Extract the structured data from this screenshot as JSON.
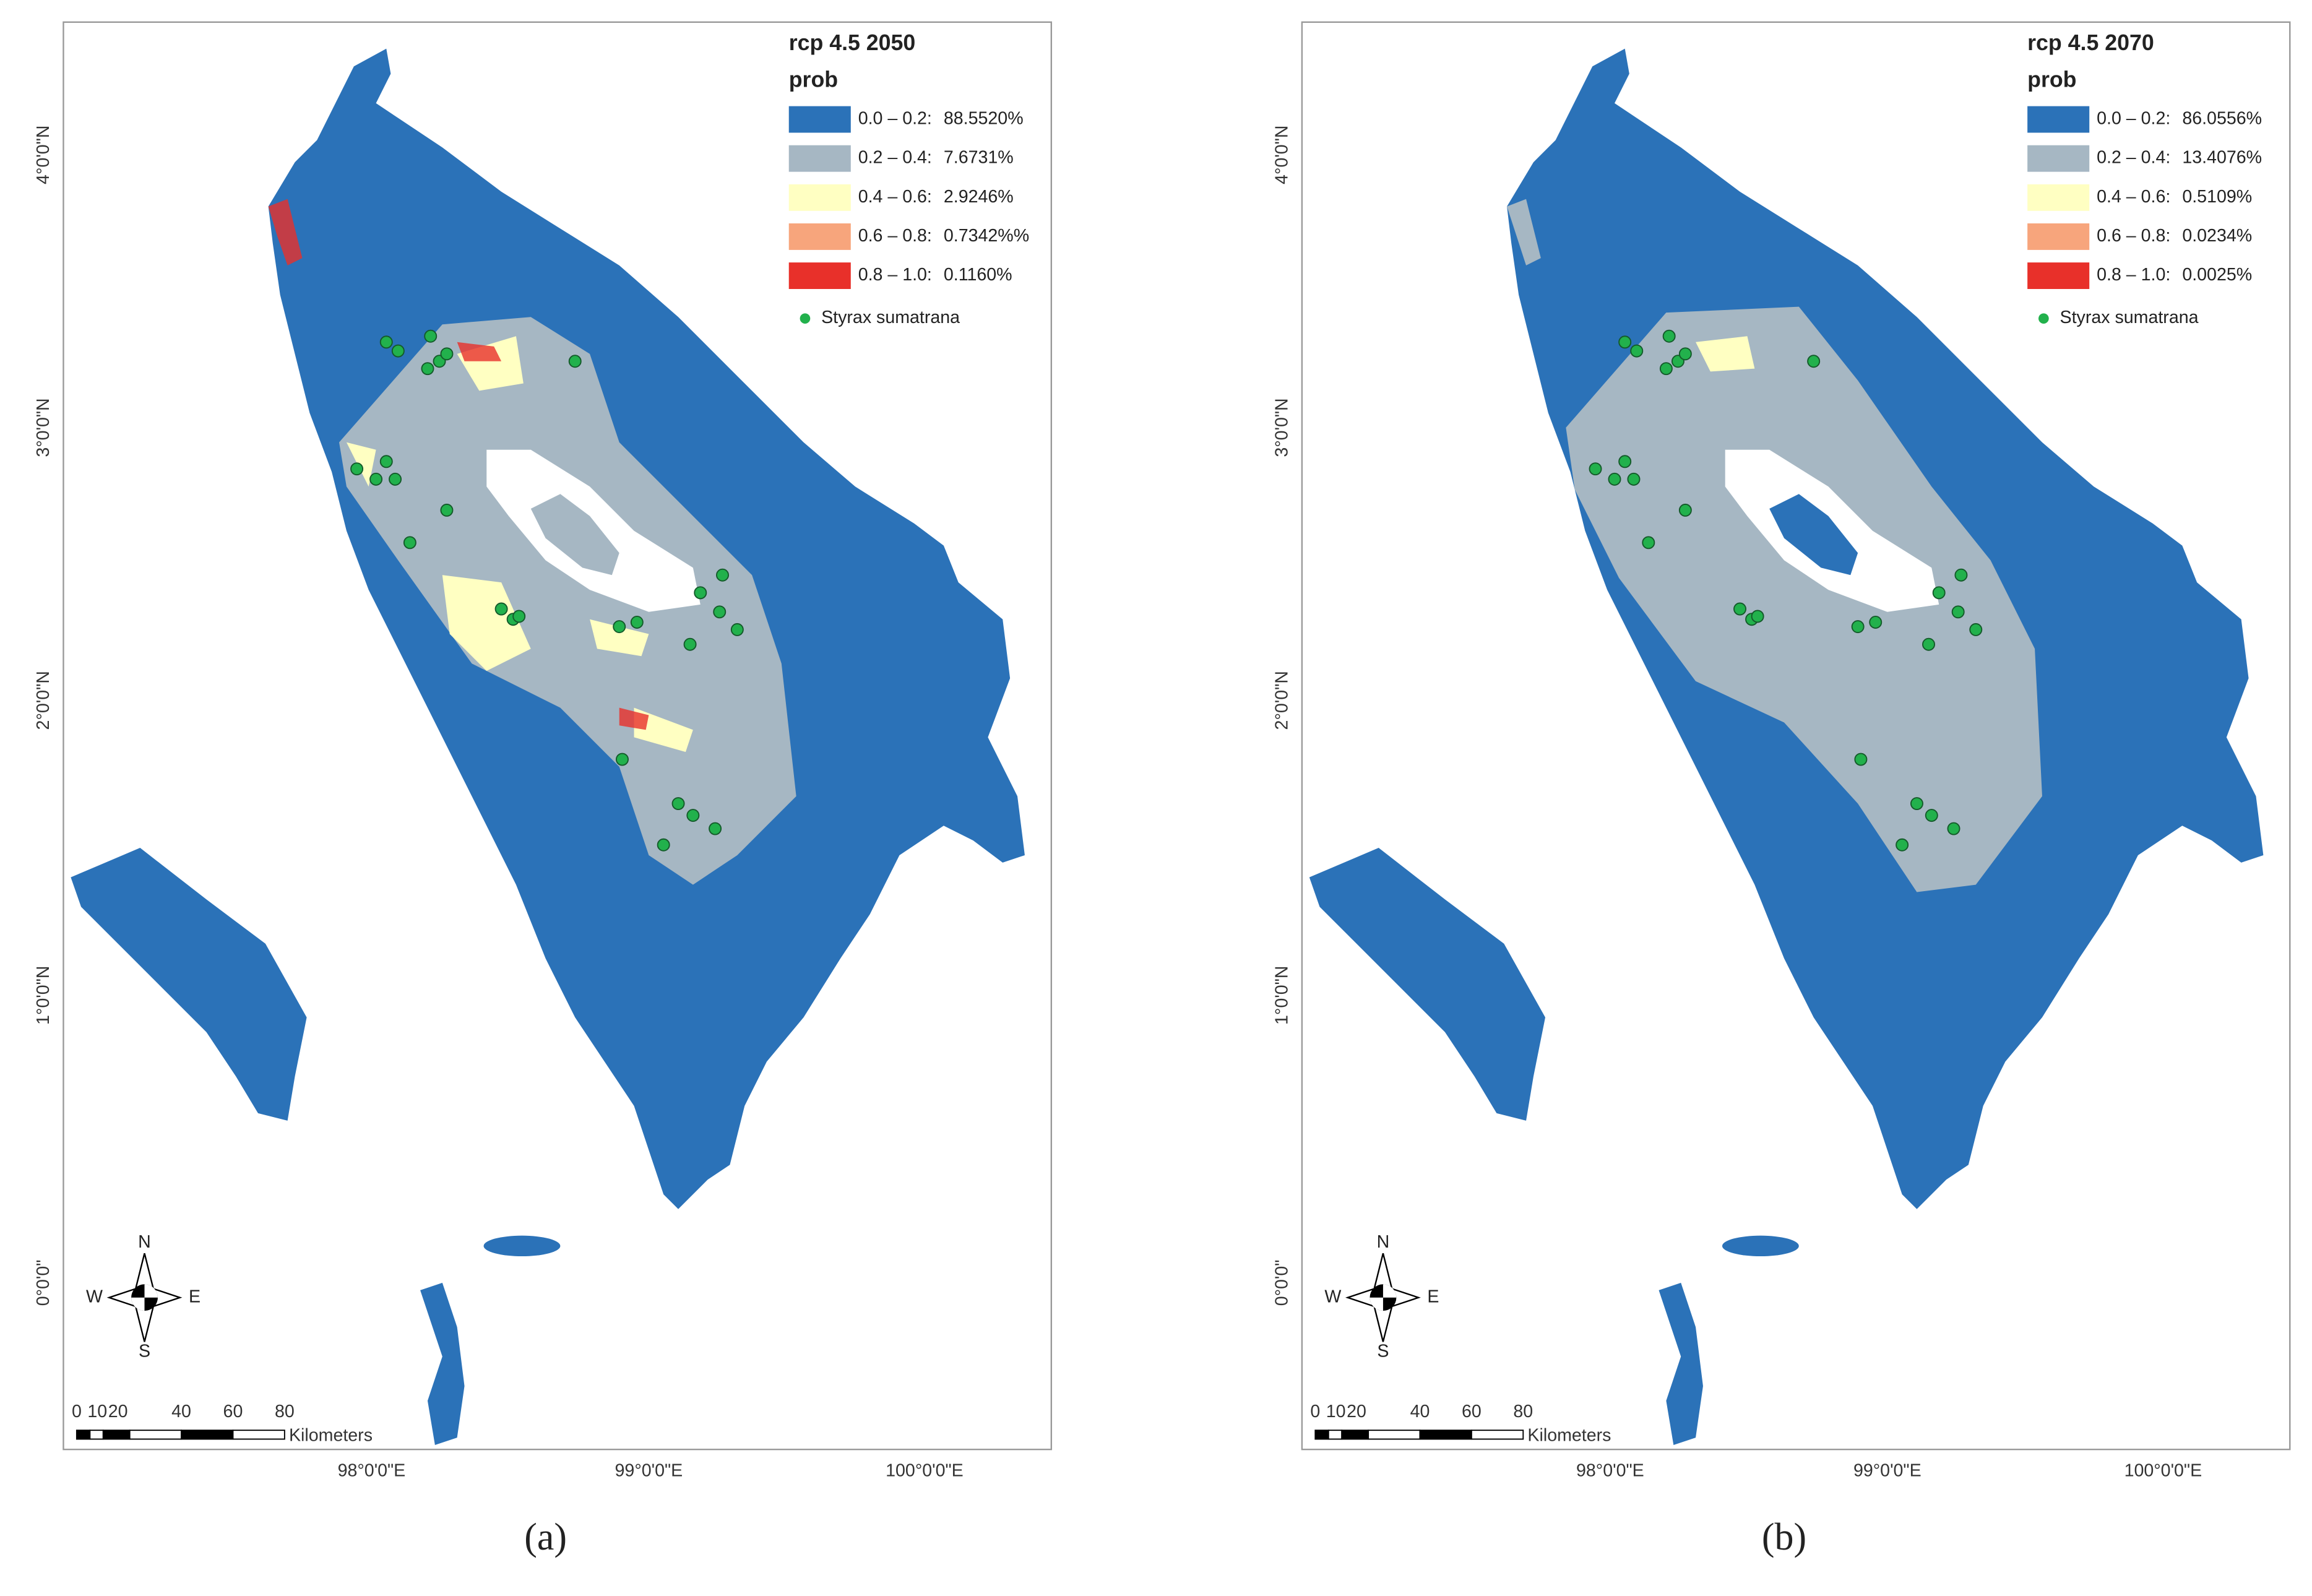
{
  "panels": [
    {
      "title": "rcp 4.5 2050",
      "legend_title": "prob",
      "legend": [
        {
          "range": "0.0 – 0.2:",
          "value": "88.5520%",
          "color": "#2b72b8"
        },
        {
          "range": "0.2 – 0.4:",
          "value": "7.6731%",
          "color": "#a6b7c3"
        },
        {
          "range": "0.4 – 0.6:",
          "value": "2.9246%",
          "color": "#ffffc2"
        },
        {
          "range": "0.6 – 0.8:",
          "value": "0.7342%%",
          "color": "#f7a57c"
        },
        {
          "range": "0.8 – 1.0:",
          "value": "0.1160%",
          "color": "#e8302a"
        }
      ],
      "points_label": "Styrax sumatrana",
      "lat_labels": [
        "4°0'0\"N",
        "3°0'0\"N",
        "2°0'0\"N",
        "1°0'0\"N",
        "0°0'0\""
      ],
      "lon_labels": [
        "98°0'0\"E",
        "99°0'0\"E",
        "100°0'0\"E"
      ],
      "compass": {
        "n": "N",
        "s": "S",
        "e": "E",
        "w": "W"
      },
      "scale_labels": [
        "0",
        "10",
        "20",
        "40",
        "60",
        "80"
      ],
      "scale_unit": "Kilometers",
      "caption": "(a)"
    },
    {
      "title": "rcp 4.5 2070",
      "legend_title": "prob",
      "legend": [
        {
          "range": "0.0 – 0.2:",
          "value": "86.0556%",
          "color": "#2b72b8"
        },
        {
          "range": "0.2 – 0.4:",
          "value": "13.4076%",
          "color": "#a6b7c3"
        },
        {
          "range": "0.4 – 0.6:",
          "value": "0.5109%",
          "color": "#ffffc2"
        },
        {
          "range": "0.6 – 0.8:",
          "value": "0.0234%",
          "color": "#f7a57c"
        },
        {
          "range": "0.8 – 1.0:",
          "value": "0.0025%",
          "color": "#e8302a"
        }
      ],
      "points_label": "Styrax sumatrana",
      "lat_labels": [
        "4°0'0\"N",
        "3°0'0\"N",
        "2°0'0\"N",
        "1°0'0\"N",
        "0°0'0\""
      ],
      "lon_labels": [
        "98°0'0\"E",
        "99°0'0\"E",
        "100°0'0\"E"
      ],
      "compass": {
        "n": "N",
        "s": "S",
        "e": "E",
        "w": "W"
      },
      "scale_labels": [
        "0",
        "10",
        "20",
        "40",
        "60",
        "80"
      ],
      "scale_unit": "Kilometers",
      "caption": "(b)"
    }
  ]
}
